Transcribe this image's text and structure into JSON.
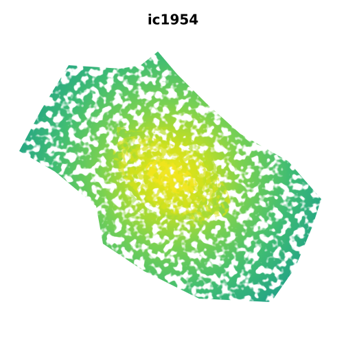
{
  "title": "ic1954"
}
